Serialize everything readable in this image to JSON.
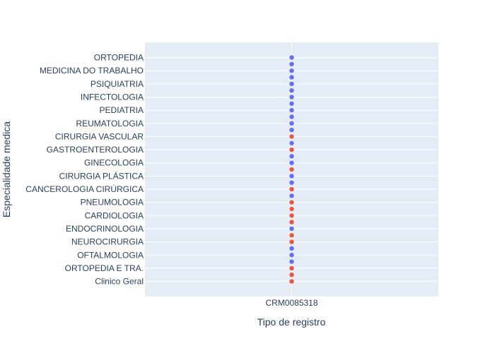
{
  "chart_data": {
    "type": "scatter",
    "title": "",
    "xlabel": "Tipo de registro",
    "ylabel": "Especialidade medica",
    "x_categories": [
      "CRM0085318"
    ],
    "y_labels": [
      "ORTOPEDIA",
      "MEDICINA DO TRABALHO",
      "PSIQUIATRIA",
      "INFECTOLOGIA",
      "PEDIATRIA",
      "REUMATOLOGIA",
      "CIRURGIA VASCULAR",
      "GASTROENTEROLOGIA",
      "GINECOLOGIA",
      "CIRURGIA PLÁSTICA",
      "CANCEROLOGIA CIRÚRGICA",
      "PNEUMOLOGIA",
      "CARDIOLOGIA",
      "ENDOCRINOLOGIA",
      "NEUROCIRURGIA",
      "OFTALMOLOGIA",
      "ORTOPEDIA E TRA.",
      "Clinico Geral"
    ],
    "grid": true,
    "legend": "none",
    "colors": {
      "series_a": "#636efa",
      "series_b": "#ef553b",
      "plot_bg": "#e5ecf6"
    },
    "points": [
      {
        "y": 0,
        "color": "series_a"
      },
      {
        "y": 0.5,
        "color": "series_a"
      },
      {
        "y": 1,
        "color": "series_a"
      },
      {
        "y": 1.5,
        "color": "series_a"
      },
      {
        "y": 2,
        "color": "series_a"
      },
      {
        "y": 2.5,
        "color": "series_a"
      },
      {
        "y": 3,
        "color": "series_a"
      },
      {
        "y": 3.5,
        "color": "series_a"
      },
      {
        "y": 4,
        "color": "series_a"
      },
      {
        "y": 4.5,
        "color": "series_a"
      },
      {
        "y": 5,
        "color": "series_a"
      },
      {
        "y": 5.5,
        "color": "series_a"
      },
      {
        "y": 6,
        "color": "series_b"
      },
      {
        "y": 6.5,
        "color": "series_a"
      },
      {
        "y": 7,
        "color": "series_b"
      },
      {
        "y": 7.5,
        "color": "series_a"
      },
      {
        "y": 8,
        "color": "series_a"
      },
      {
        "y": 8.5,
        "color": "series_b"
      },
      {
        "y": 9,
        "color": "series_a"
      },
      {
        "y": 9.5,
        "color": "series_a"
      },
      {
        "y": 10,
        "color": "series_b"
      },
      {
        "y": 10.5,
        "color": "series_a"
      },
      {
        "y": 11,
        "color": "series_b"
      },
      {
        "y": 11.5,
        "color": "series_b"
      },
      {
        "y": 12,
        "color": "series_b"
      },
      {
        "y": 12.5,
        "color": "series_b"
      },
      {
        "y": 13,
        "color": "series_a"
      },
      {
        "y": 13.5,
        "color": "series_b"
      },
      {
        "y": 14,
        "color": "series_b"
      },
      {
        "y": 14.5,
        "color": "series_a"
      },
      {
        "y": 15,
        "color": "series_a"
      },
      {
        "y": 15.5,
        "color": "series_a"
      },
      {
        "y": 16,
        "color": "series_b"
      },
      {
        "y": 16.5,
        "color": "series_b"
      },
      {
        "y": 17,
        "color": "series_b"
      }
    ]
  }
}
